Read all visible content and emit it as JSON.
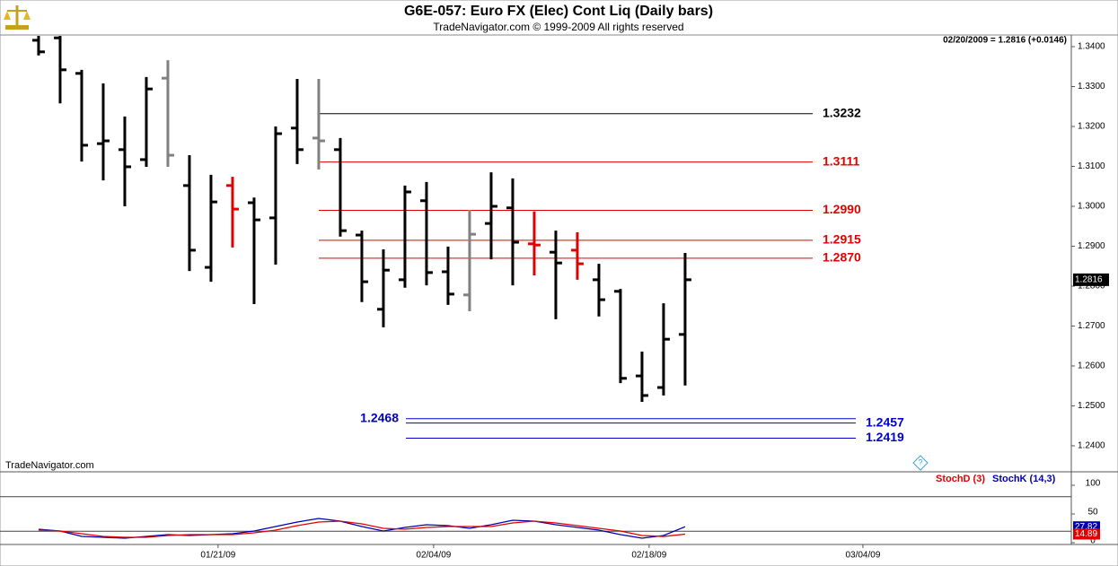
{
  "chart_data": [
    {
      "type": "ohlc",
      "title": "G6E-057:  Euro FX (Elec) Cont Liq  (Daily bars)",
      "subtitle": "TradeNavigator.com © 1999-2009 All rights reserved",
      "quote": "02/20/2009 = 1.2816 (+0.0146)",
      "watermark": "TradeNavigator.com",
      "categories": [
        null,
        null,
        null,
        null,
        null,
        null,
        null,
        null,
        null,
        null,
        null,
        null,
        null,
        null,
        null,
        null,
        null,
        null,
        null,
        null,
        null,
        null,
        null,
        null,
        null,
        null,
        null,
        null,
        null,
        null,
        null
      ],
      "xlim": [
        -1.79,
        47.92
      ],
      "ylim": [
        1.2337,
        1.3427
      ],
      "yticks": [
        {
          "value": 1.34,
          "label": "1.3400"
        },
        {
          "value": 1.33,
          "label": "1.3300"
        },
        {
          "value": 1.32,
          "label": "1.3200"
        },
        {
          "value": 1.31,
          "label": "1.3100"
        },
        {
          "value": 1.3,
          "label": "1.3000"
        },
        {
          "value": 1.29,
          "label": "1.2900"
        },
        {
          "value": 1.28,
          "label": "1.2800"
        },
        {
          "value": 1.27,
          "label": "1.2700"
        },
        {
          "value": 1.26,
          "label": "1.2600"
        },
        {
          "value": 1.25,
          "label": "1.2500"
        },
        {
          "value": 1.24,
          "label": "1.2400"
        }
      ],
      "open": [
        1.3416,
        1.3422,
        1.3333,
        1.3157,
        1.3142,
        1.3117,
        1.3321,
        1.3052,
        1.2847,
        1.3052,
        1.3009,
        1.2971,
        1.3196,
        1.3171,
        1.3142,
        1.2928,
        1.2742,
        1.2816,
        1.3014,
        1.2836,
        1.2778,
        1.2957,
        1.2996,
        1.2906,
        1.2885,
        1.289,
        1.2816,
        1.2787,
        1.2575,
        1.2546,
        1.2679
      ],
      "high": [
        1.3427,
        1.3427,
        1.3342,
        1.3308,
        1.3225,
        1.3324,
        1.3366,
        1.3128,
        1.3079,
        1.3074,
        1.3022,
        1.32,
        1.3319,
        1.3319,
        1.3171,
        1.2939,
        1.2892,
        1.3052,
        1.3061,
        1.2899,
        1.2991,
        1.3085,
        1.307,
        1.2987,
        1.2939,
        1.2935,
        1.2856,
        1.2793,
        1.2636,
        1.2757,
        1.2883
      ],
      "low": [
        1.3378,
        1.3258,
        1.3112,
        1.3065,
        1.3,
        1.3099,
        1.3099,
        1.2838,
        1.2811,
        1.2897,
        1.2755,
        1.2854,
        1.3106,
        1.3092,
        1.2924,
        1.276,
        1.2697,
        1.2796,
        1.2802,
        1.2753,
        1.2737,
        1.2867,
        1.2802,
        1.2827,
        1.2717,
        1.2816,
        1.2724,
        1.2557,
        1.251,
        1.2526,
        1.2551
      ],
      "close": [
        1.3387,
        1.3342,
        1.3153,
        1.3164,
        1.3099,
        1.3294,
        1.3128,
        1.289,
        1.3011,
        1.2993,
        1.2966,
        1.3182,
        1.3142,
        1.3164,
        1.2939,
        1.2811,
        1.284,
        1.3036,
        1.2834,
        1.278,
        1.293,
        1.3,
        1.291,
        1.2903,
        1.2858,
        1.2856,
        1.2766,
        1.2569,
        1.2526,
        1.2667,
        1.2816
      ],
      "colors": [
        "#000000",
        "#000000",
        "#000000",
        "#000000",
        "#000000",
        "#000000",
        "#808080",
        "#000000",
        "#000000",
        "#e00000",
        "#000000",
        "#000000",
        "#000000",
        "#808080",
        "#000000",
        "#000000",
        "#000000",
        "#000000",
        "#000000",
        "#000000",
        "#808080",
        "#000000",
        "#000000",
        "#e00000",
        "#000000",
        "#e00000",
        "#000000",
        "#000000",
        "#000000",
        "#000000",
        "#000000"
      ],
      "levels": [
        {
          "value": 1.3232,
          "label": "1.3232",
          "color": "#000000",
          "label_side": "right"
        },
        {
          "value": 1.3111,
          "label": "1.3111",
          "color": "#e00000",
          "label_side": "right"
        },
        {
          "value": 1.299,
          "label": "1.2990",
          "color": "#e00000",
          "label_side": "right"
        },
        {
          "value": 1.2915,
          "label": "1.2915",
          "color": "#e00000",
          "label_side": "right"
        },
        {
          "value": 1.287,
          "label": "1.2870",
          "color": "#e00000",
          "label_side": "right"
        },
        {
          "value": 1.2468,
          "label": "1.2468",
          "color": "#0000cc",
          "label_side": "left"
        },
        {
          "value": 1.2457,
          "label": "1.2457",
          "color": "#0000cc",
          "label_side": "right"
        },
        {
          "value": 1.2419,
          "label": "1.2419",
          "color": "#0000cc",
          "label_side": "right"
        }
      ]
    },
    {
      "type": "line",
      "categories": [
        null,
        null,
        null,
        null,
        null,
        null,
        null,
        null,
        null,
        null,
        null,
        null,
        null,
        null,
        null,
        null,
        null,
        null,
        null,
        null,
        null,
        null,
        null,
        null,
        null,
        null,
        null,
        null,
        null,
        null,
        null
      ],
      "xlim": [
        -1.79,
        47.92
      ],
      "xticks": [
        {
          "value": 8.33,
          "label": "01/21/09"
        },
        {
          "value": 18.33,
          "label": "02/04/09"
        },
        {
          "value": 28.33,
          "label": "02/18/09"
        },
        {
          "value": 38.25,
          "label": "03/04/09"
        }
      ],
      "ylim": [
        -3.1,
        120.3
      ],
      "yticks": [
        100,
        50,
        0
      ],
      "hlines": [
        80,
        20
      ],
      "series": [
        {
          "name": "StochK (14,3)",
          "color": "#0000b0",
          "values": [
            23.4,
            20.3,
            10.9,
            9.4,
            7.8,
            10.9,
            14.1,
            12.5,
            14.1,
            15.6,
            20.3,
            28.1,
            35.9,
            42.2,
            37.5,
            28.1,
            20.3,
            26.6,
            31.3,
            29.7,
            25.0,
            31.3,
            39.1,
            37.5,
            31.3,
            26.6,
            21.9,
            14.1,
            7.8,
            12.5,
            27.82
          ]
        },
        {
          "name": "StochD (3)",
          "color": "#e00000",
          "values": [
            21.9,
            20.3,
            15.6,
            10.9,
            9.4,
            9.4,
            12.5,
            14.1,
            14.1,
            14.1,
            17.2,
            21.9,
            29.7,
            35.9,
            37.5,
            32.8,
            25.0,
            23.4,
            26.6,
            28.1,
            28.1,
            28.1,
            34.4,
            37.5,
            34.4,
            29.7,
            25.0,
            20.3,
            12.5,
            10.9,
            14.89
          ]
        }
      ]
    }
  ]
}
